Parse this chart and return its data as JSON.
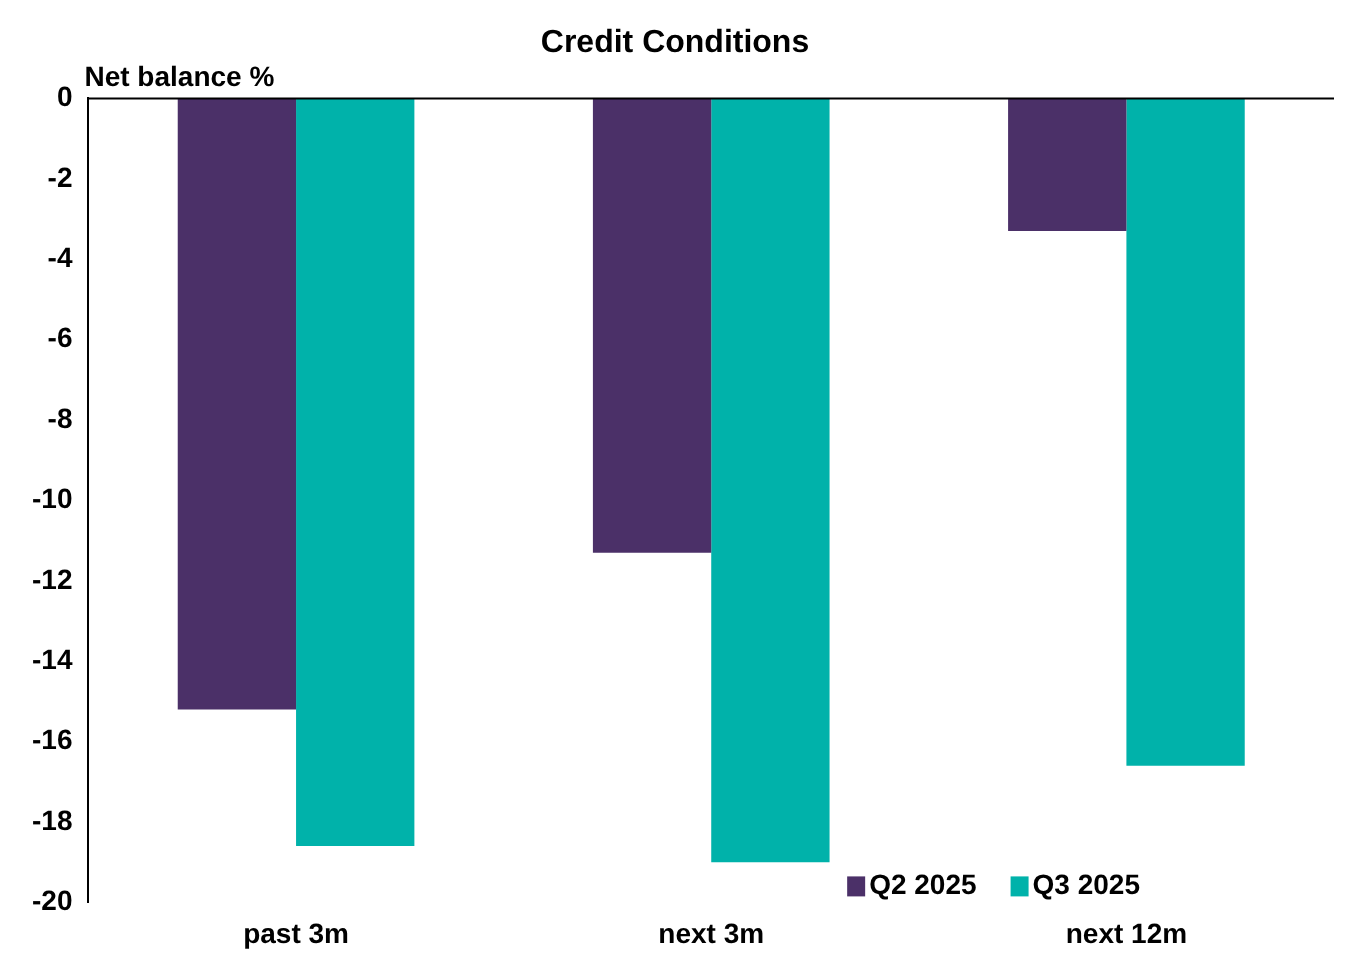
{
  "chart_data": {
    "type": "bar",
    "title": "Credit Conditions",
    "ylabel": "Net balance %",
    "categories": [
      "past 3m",
      "next 3m",
      "next 12m"
    ],
    "series": [
      {
        "name": "Q2 2025",
        "color": "#4b3068",
        "values": [
          -15.2,
          -11.3,
          -3.3
        ]
      },
      {
        "name": "Q3 2025",
        "color": "#00b2aa",
        "values": [
          -18.6,
          -19.0,
          -16.6
        ]
      }
    ],
    "ylim": [
      -20,
      0
    ],
    "yticks": [
      0,
      -2,
      -4,
      -6,
      -8,
      -10,
      -12,
      -14,
      -16,
      -18,
      -20
    ],
    "grid": false,
    "legend": "bottom right"
  }
}
